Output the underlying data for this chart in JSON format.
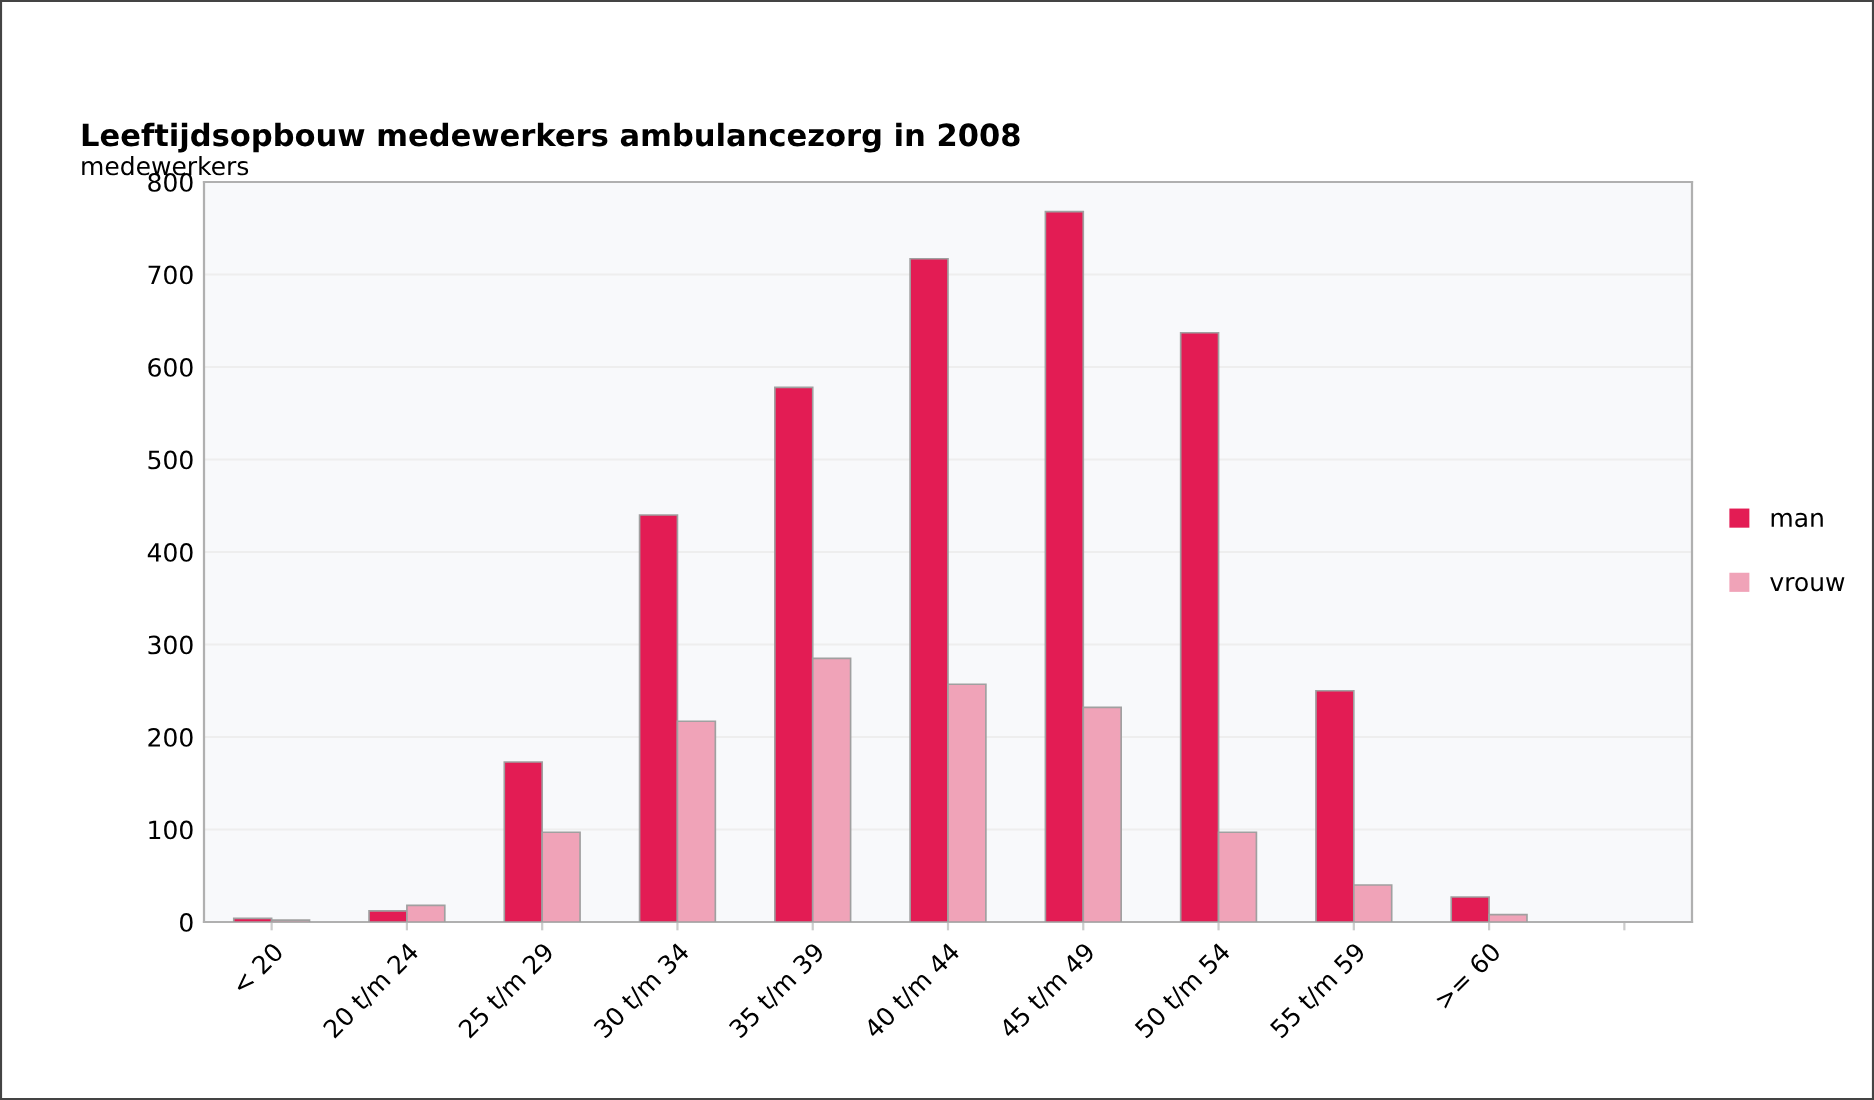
{
  "chart_data": {
    "type": "bar",
    "title": "Leeftijdsopbouw medewerkers ambulancezorg in 2008",
    "ylabel": "medewerkers",
    "categories": [
      "< 20",
      "20 t/m 24",
      "25 t/m 29",
      "30 t/m 34",
      "35 t/m 39",
      "40 t/m 44",
      "45 t/m 49",
      "50 t/m 54",
      "55 t/m 59",
      ">= 60",
      null
    ],
    "series": [
      {
        "name": "man",
        "color": "#e31c54",
        "values": [
          4,
          12,
          173,
          440,
          578,
          717,
          768,
          637,
          250,
          27,
          null
        ]
      },
      {
        "name": "vrouw",
        "color": "#f0a3b8",
        "values": [
          2,
          18,
          97,
          217,
          285,
          257,
          232,
          97,
          40,
          8,
          null
        ]
      }
    ],
    "ylim": [
      0,
      800
    ],
    "yticks": [
      0,
      100,
      200,
      300,
      400,
      500,
      600,
      700,
      800
    ],
    "grid": "y",
    "legend": "right"
  }
}
